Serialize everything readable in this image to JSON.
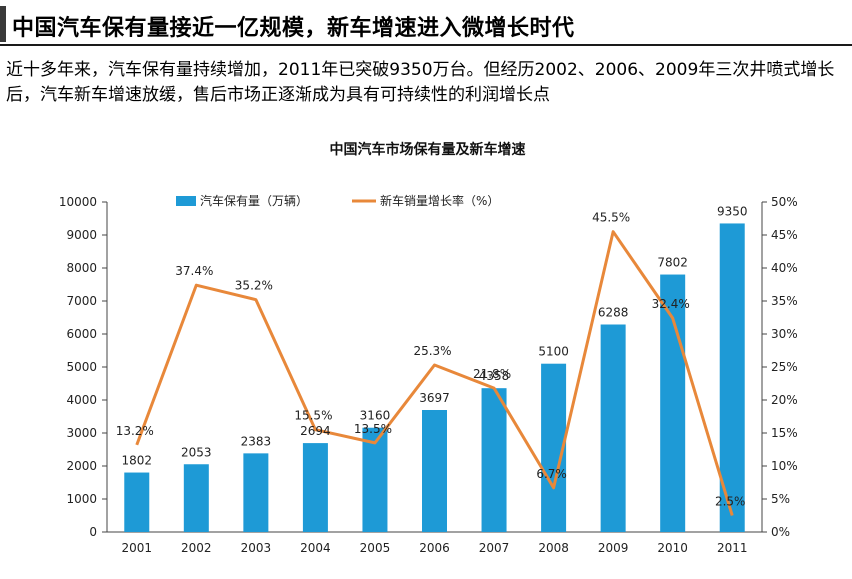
{
  "headline": "中国汽车保有量接近一亿规模，新车增速进入微增长时代",
  "summary": "近十多年来，汽车保有量持续增加，2011年已突破9350万台。但经历2002、2006、2009年三次井喷式增长后，汽车新车增速放缓，售后市场正逐渐成为具有可持续性的利润增长点",
  "chart_data": {
    "type": "bar",
    "title": "中国汽车市场保有量及新车增速",
    "categories": [
      "2001",
      "2002",
      "2003",
      "2004",
      "2005",
      "2006",
      "2007",
      "2008",
      "2009",
      "2010",
      "2011"
    ],
    "series": [
      {
        "name": "汽车保有量（万辆）",
        "type": "bar",
        "axis": "left",
        "color": "#1e9ad6",
        "values": [
          1802,
          2053,
          2383,
          2694,
          3160,
          3697,
          4358,
          5100,
          6288,
          7802,
          9350
        ],
        "labels": [
          "1802",
          "2053",
          "2383",
          "2694",
          "3160",
          "3697",
          "4358",
          "5100",
          "6288",
          "7802",
          "9350"
        ]
      },
      {
        "name": "新车销量增长率（%）",
        "type": "line",
        "axis": "right",
        "color": "#e8883a",
        "values": [
          13.2,
          37.4,
          35.2,
          15.5,
          13.5,
          25.3,
          21.8,
          6.7,
          45.5,
          32.4,
          2.5
        ],
        "labels": [
          "13.2%",
          "37.4%",
          "35.2%",
          "15.5%",
          "13.5%",
          "25.3%",
          "21.8%",
          "6.7%",
          "45.5%",
          "32.4%",
          "2.5%"
        ]
      }
    ],
    "y_left": {
      "min": 0,
      "max": 10000,
      "ticks": [
        "0",
        "1000",
        "2000",
        "3000",
        "4000",
        "5000",
        "6000",
        "7000",
        "8000",
        "9000",
        "10000"
      ]
    },
    "y_right": {
      "min": 0,
      "max": 50,
      "ticks": [
        "0%",
        "5%",
        "10%",
        "15%",
        "20%",
        "25%",
        "30%",
        "35%",
        "40%",
        "45%",
        "50%"
      ]
    },
    "legend_position": "top",
    "grid": false
  }
}
